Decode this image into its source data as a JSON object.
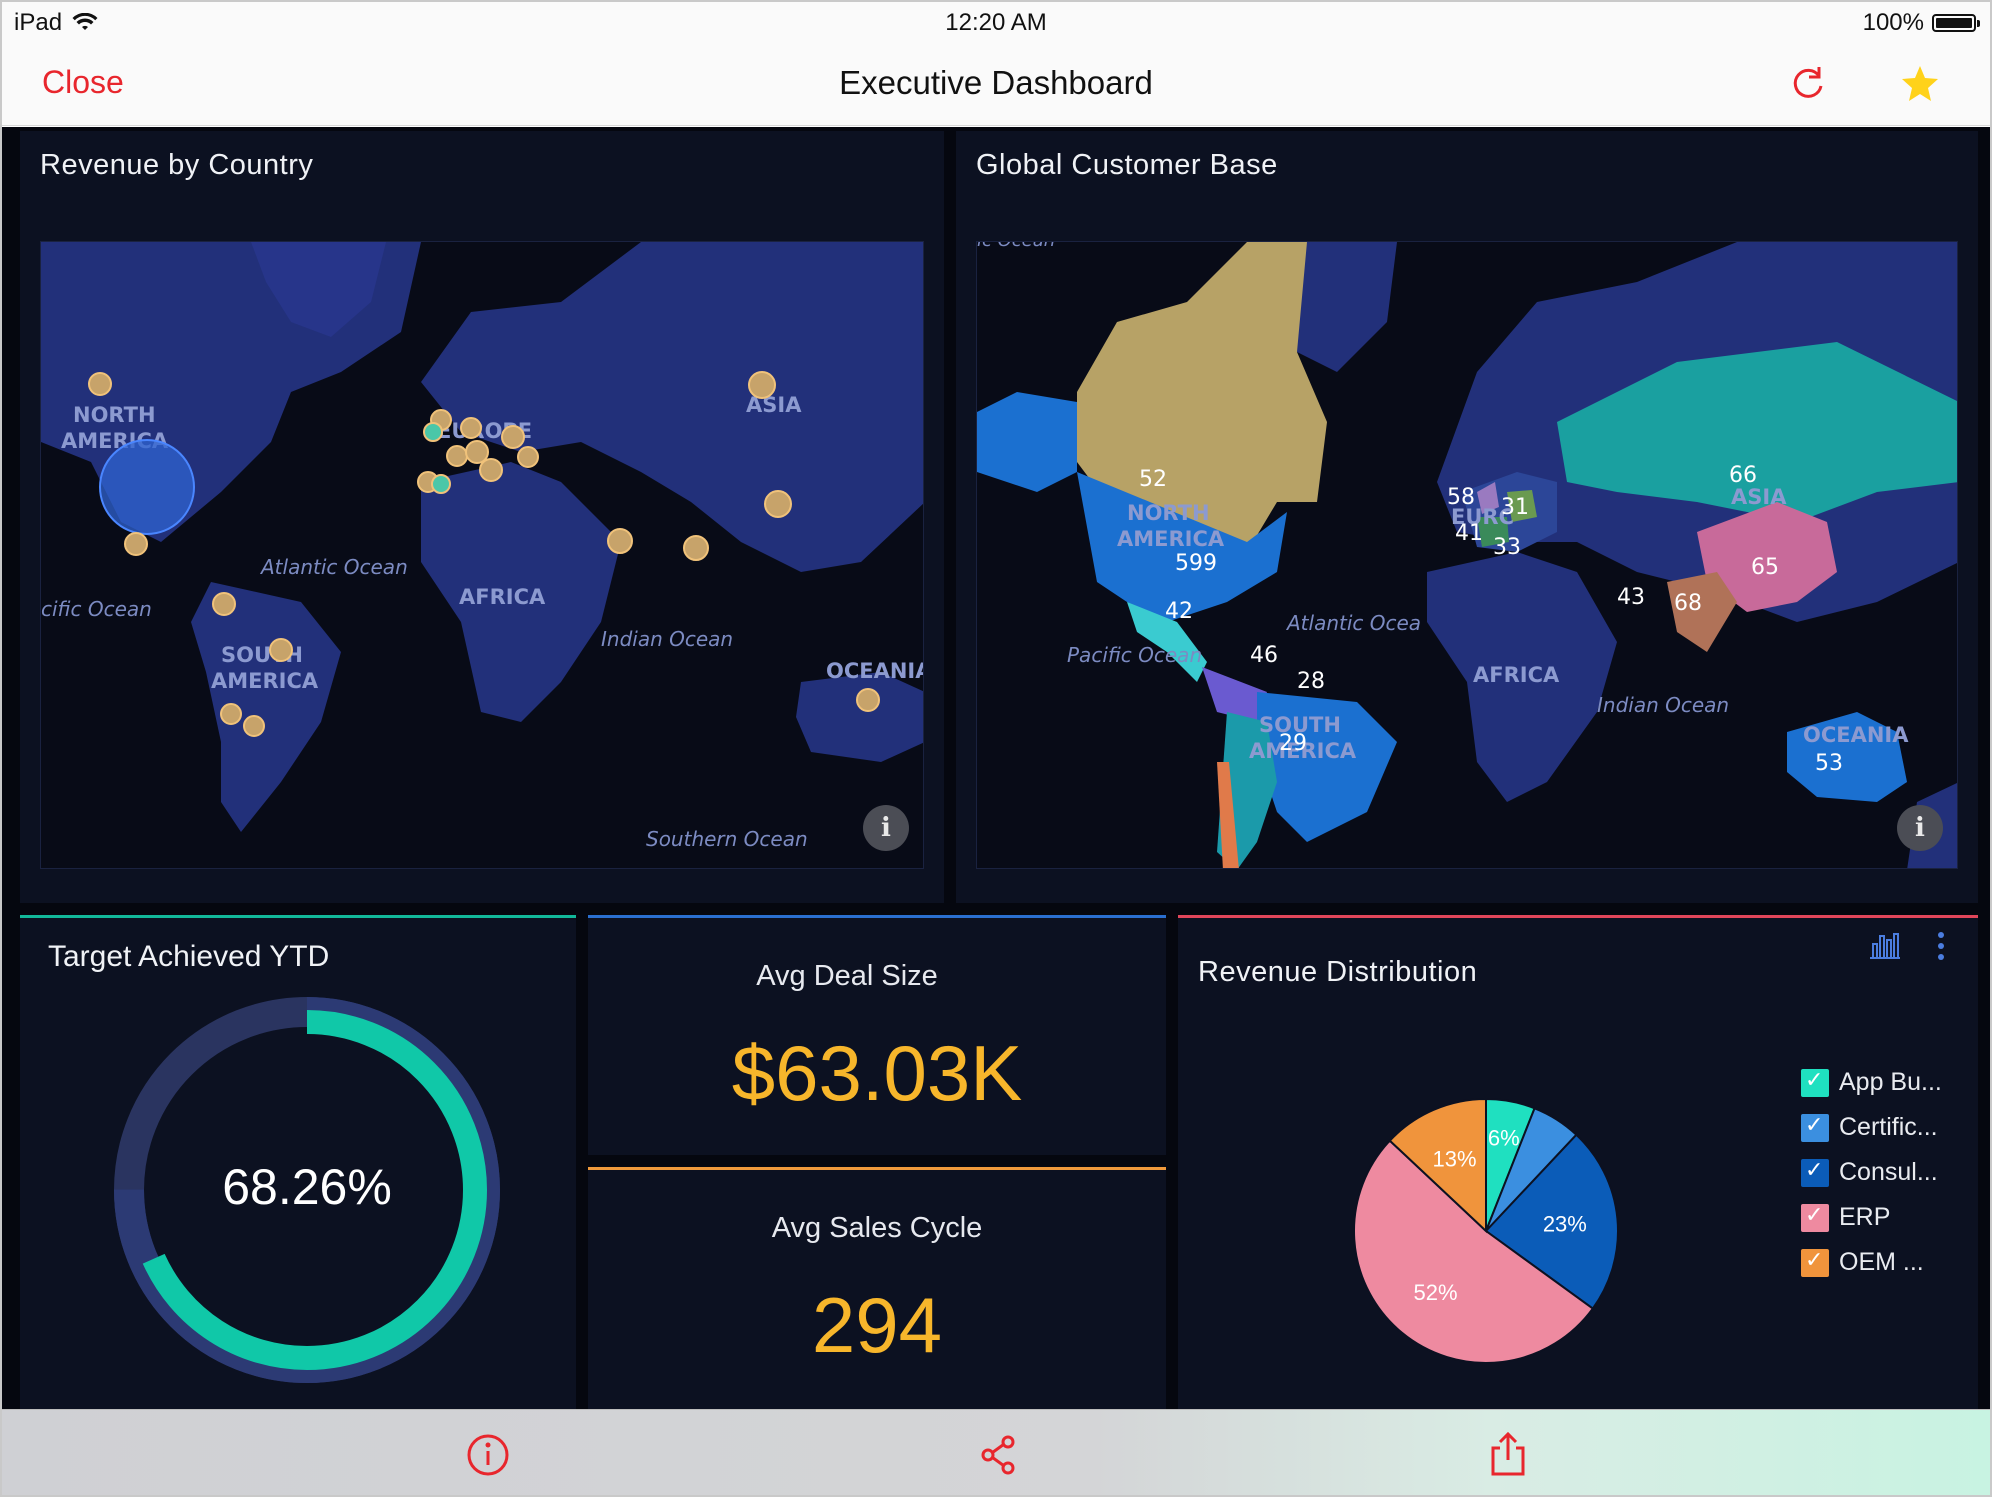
{
  "status_bar": {
    "device": "iPad",
    "time": "12:20 AM",
    "battery": "100%"
  },
  "nav": {
    "close_label": "Close",
    "title": "Executive Dashboard"
  },
  "revenue_map": {
    "title": "Revenue by Country",
    "labels": {
      "north_america": [
        "NORTH",
        "AMERICA"
      ],
      "south_america": [
        "SOUTH",
        "AMERICA"
      ],
      "europe": "EUROPE",
      "asia": "ASIA",
      "africa": "AFRICA",
      "oceania": "OCEANIA",
      "atlantic": "Atlantic Ocean",
      "pacific": "cific Ocean",
      "indian": "Indian Ocean",
      "southern": "Southern Ocean"
    }
  },
  "customer_map": {
    "title": "Global Customer Base",
    "labels": {
      "north_america": [
        "NORTH",
        "AMERICA"
      ],
      "south_america": [
        "SOUTH",
        "AMERICA"
      ],
      "europe": "EURC",
      "asia": "ASIA",
      "africa": "AFRICA",
      "oceania": "OCEANIA",
      "atlantic": "Atlantic Ocea",
      "pacific": "Pacific Ocean",
      "indian": "Indian Ocean",
      "top_fragment": "ic Ocean"
    },
    "values": {
      "canada": "52",
      "usa": "599",
      "mexico": "42",
      "central_america": "46",
      "brazil": "28",
      "chile": "29",
      "uk": "58",
      "germany": "31",
      "france": "41",
      "italy": "33",
      "russia": "66",
      "china": "65",
      "india": "68",
      "middle_east": "43",
      "australia": "53"
    }
  },
  "target": {
    "title": "Target Achieved YTD",
    "value_text": "68.26%",
    "fraction": 0.6826
  },
  "avg_deal": {
    "label": "Avg Deal Size",
    "value": "$63.03K"
  },
  "avg_cycle": {
    "label": "Avg Sales Cycle",
    "value": "294"
  },
  "distribution": {
    "title": "Revenue Distribution",
    "legend": [
      "App Bu...",
      "Certific...",
      "Consul...",
      "ERP",
      "OEM ..."
    ]
  },
  "chart_data": {
    "type": "pie",
    "title": "Revenue Distribution",
    "categories": [
      "App Bu...",
      "Certific...",
      "Consul...",
      "ERP",
      "OEM ..."
    ],
    "values": [
      6,
      6,
      23,
      52,
      13
    ],
    "data_labels": [
      "6%",
      "",
      "23%",
      "52%",
      "13%"
    ],
    "colors": [
      "#1fe0c0",
      "#3b8fe0",
      "#0b5cb8",
      "#ee8aa0",
      "#f0943c"
    ],
    "legend": "right"
  },
  "colors": {
    "accent_red": "#e8262d",
    "kpi_yellow": "#f7b62b",
    "donut_teal": "#10c8a8",
    "donut_track": "#2c3a74"
  },
  "icons": {
    "refresh": "refresh-icon",
    "favorite": "star-icon",
    "info": "info-icon",
    "share": "share-icon",
    "export": "export-icon"
  }
}
